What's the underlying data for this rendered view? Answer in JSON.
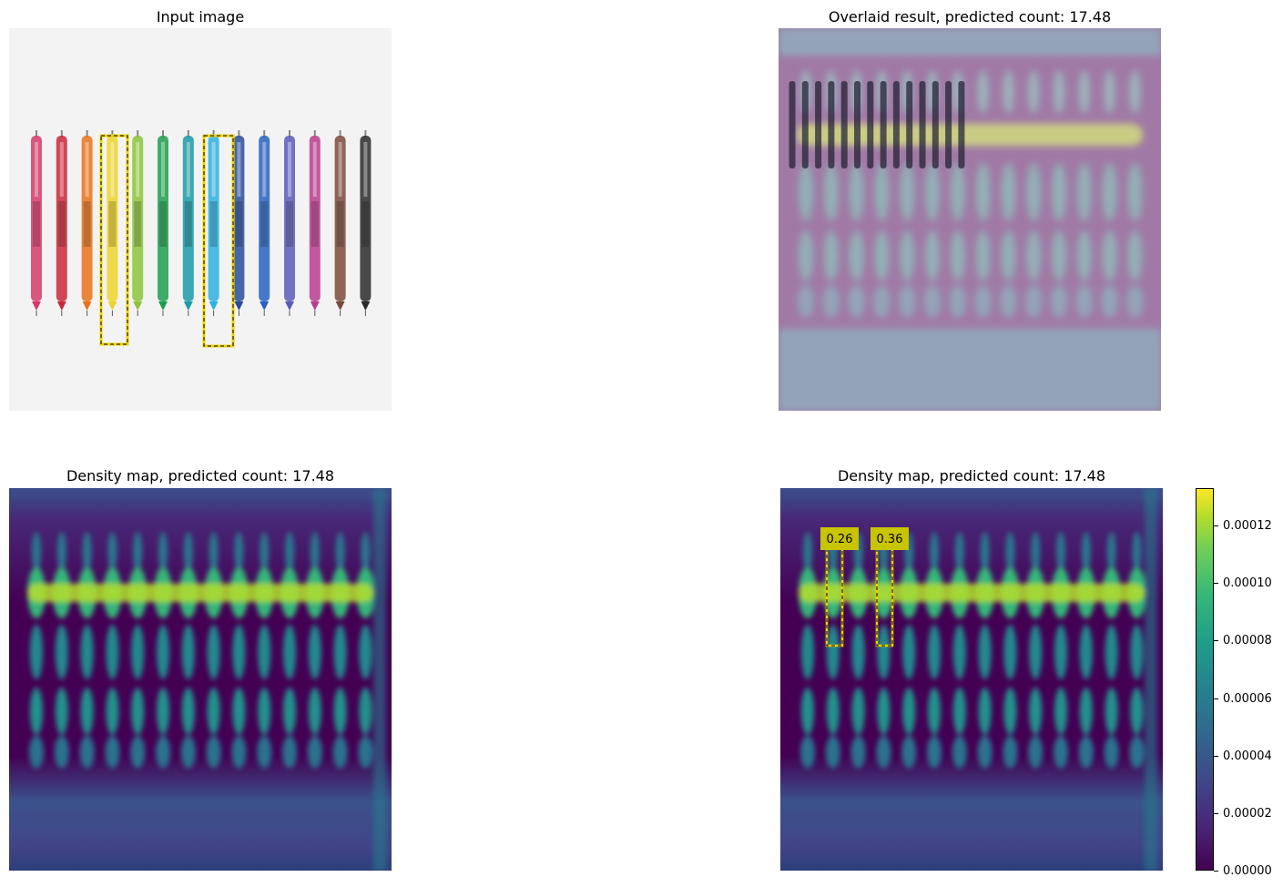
{
  "panels": {
    "input": {
      "title": "Input image"
    },
    "overlay": {
      "title": "Overlaid result, predicted count: 17.48"
    },
    "density": {
      "title": "Density map, predicted count: 17.48"
    },
    "density_boxes": {
      "title": "Density map, predicted count: 17.48"
    }
  },
  "colors": {
    "pens": [
      "#d33a6a",
      "#c8283a",
      "#e8731a",
      "#ecd42c",
      "#8cc43c",
      "#1f9e50",
      "#1a9aa6",
      "#2eb0e0",
      "#2a4c9a",
      "#2860c0",
      "#5a5ab8",
      "#b83c8e",
      "#7a4a3a",
      "#2a2a2a"
    ],
    "box": "#ecd400"
  },
  "chart_data": [
    {
      "type": "heatmap",
      "title": "Density map, predicted count: 17.48",
      "predicted_count": 17.48,
      "axes": "off"
    },
    {
      "type": "heatmap",
      "title": "Density map, predicted count: 17.48",
      "predicted_count": 17.48,
      "box_labels": [
        "0.26",
        "0.36"
      ],
      "colorbar": {
        "range": [
          0,
          0.000133
        ],
        "tick_labels": [
          "0.00000",
          "0.00002",
          "0.00004",
          "0.00006",
          "0.00008",
          "0.00010",
          "0.00012"
        ],
        "tick_values": [
          0,
          2e-05,
          4e-05,
          6e-05,
          8e-05,
          0.0001,
          0.00012
        ],
        "colormap": "viridis"
      }
    }
  ]
}
